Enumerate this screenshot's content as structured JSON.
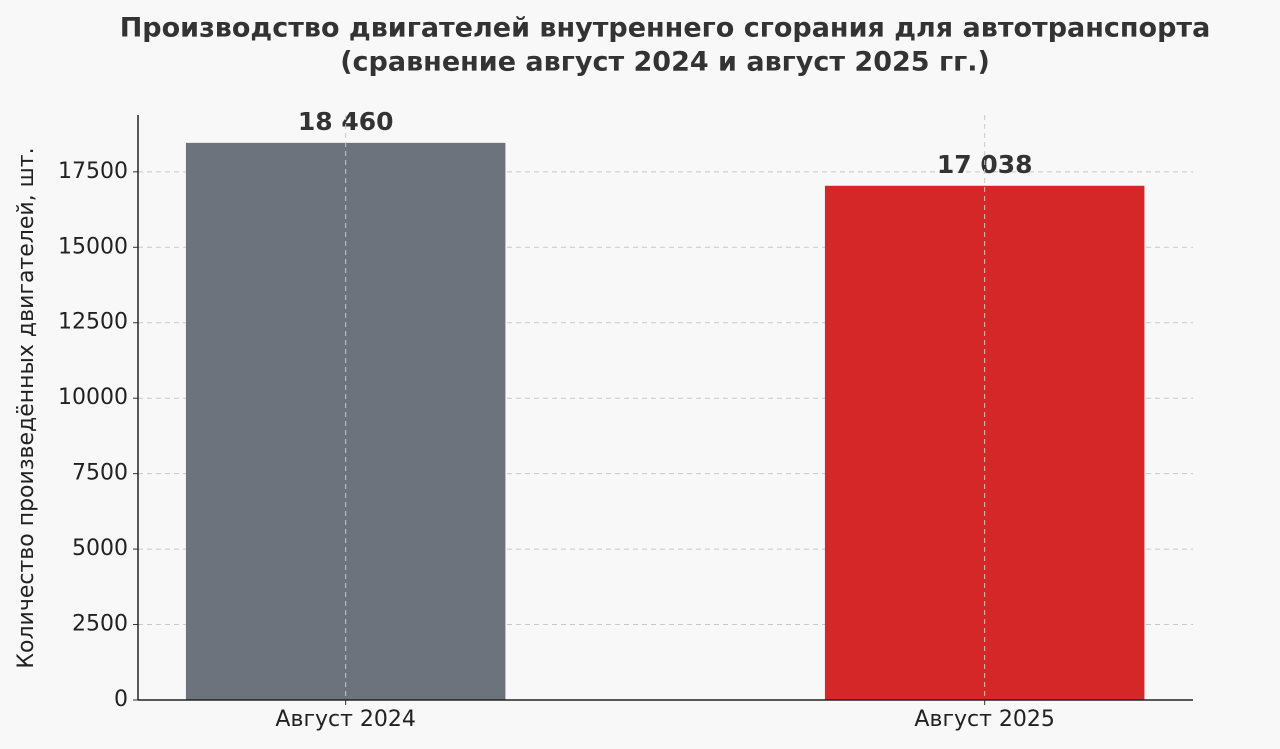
{
  "chart_data": {
    "type": "bar",
    "title": [
      "Производство двигателей внутреннего сгорания для автотранспорта",
      "(сравнение август 2024 и август 2025 гг.)"
    ],
    "y_label": "Количество произведённых двигателей, шт.",
    "categories": [
      "Август 2024",
      "Август 2025"
    ],
    "values": [
      18460,
      17038
    ],
    "value_labels": [
      "18 460",
      "17 038"
    ],
    "colors": [
      "#6c737c",
      "#d62728"
    ],
    "ylim": [
      0,
      19383
    ],
    "yticks": [
      0,
      2500,
      5000,
      7500,
      10000,
      12500,
      15000,
      17500
    ],
    "grid": true
  }
}
